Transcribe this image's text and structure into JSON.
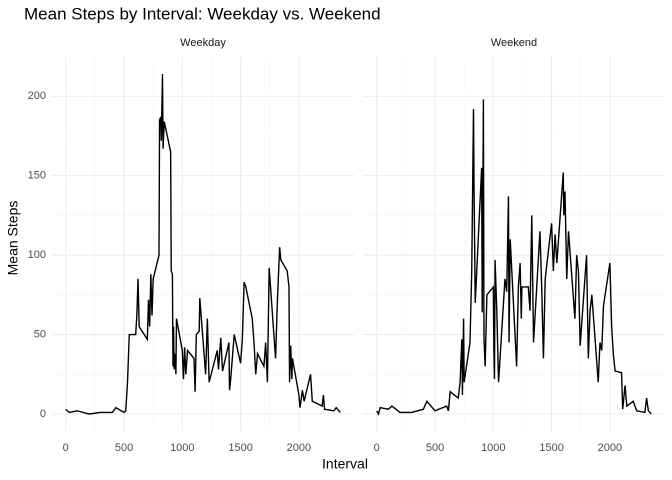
{
  "chart_data": [
    {
      "type": "line",
      "title": "Mean Steps by Interval: Weekday vs. Weekend",
      "x_label": "Interval",
      "y_label": "Mean Steps",
      "facet": "Weekday",
      "color": "#000000",
      "grid": true,
      "xlim": [
        -117.75,
        2472.75
      ],
      "xticks": [
        0,
        500,
        1000,
        1500,
        2000
      ],
      "ylim": [
        -10.7,
        224.7
      ],
      "yticks": [
        0,
        50,
        100,
        150,
        200
      ],
      "x": [
        0,
        30,
        100,
        200,
        300,
        400,
        430,
        500,
        515,
        530,
        545,
        600,
        610,
        620,
        630,
        700,
        710,
        720,
        730,
        740,
        750,
        800,
        805,
        815,
        820,
        830,
        835,
        845,
        900,
        905,
        915,
        920,
        925,
        930,
        940,
        945,
        950,
        1000,
        1010,
        1020,
        1030,
        1045,
        1100,
        1110,
        1120,
        1145,
        1150,
        1200,
        1215,
        1230,
        1300,
        1310,
        1330,
        1345,
        1400,
        1405,
        1415,
        1445,
        1500,
        1515,
        1530,
        1545,
        1600,
        1615,
        1630,
        1645,
        1700,
        1715,
        1730,
        1745,
        1800,
        1815,
        1835,
        1845,
        1900,
        1915,
        1920,
        1930,
        1940,
        1945,
        2000,
        2010,
        2030,
        2045,
        2100,
        2115,
        2200,
        2210,
        2220,
        2300,
        2320,
        2355
      ],
      "values": [
        3,
        1,
        2,
        0,
        1,
        1,
        4,
        1,
        2,
        20,
        50,
        50,
        62,
        85,
        55,
        47,
        72,
        55,
        88,
        62,
        85,
        100,
        185,
        187,
        172,
        214,
        167,
        184,
        165,
        90,
        88,
        30,
        55,
        28,
        38,
        25,
        60,
        40,
        22,
        42,
        25,
        40,
        35,
        14,
        50,
        52,
        73,
        25,
        60,
        20,
        40,
        28,
        48,
        27,
        45,
        15,
        22,
        50,
        32,
        47,
        83,
        80,
        60,
        45,
        25,
        38,
        30,
        45,
        20,
        92,
        35,
        70,
        105,
        97,
        90,
        80,
        20,
        43,
        22,
        35,
        12,
        4,
        15,
        8,
        25,
        8,
        5,
        12,
        3,
        2,
        4,
        1
      ]
    },
    {
      "type": "line",
      "facet": "Weekend",
      "color": "#000000",
      "grid": true,
      "xlim": [
        -117.75,
        2472.75
      ],
      "xticks": [
        0,
        500,
        1000,
        1500,
        2000
      ],
      "ylim": [
        -10.7,
        224.7
      ],
      "yticks": [
        0,
        50,
        100,
        150,
        200
      ],
      "x": [
        0,
        15,
        30,
        100,
        130,
        200,
        300,
        400,
        430,
        500,
        600,
        615,
        630,
        700,
        715,
        730,
        735,
        745,
        750,
        800,
        815,
        830,
        835,
        845,
        900,
        905,
        915,
        920,
        930,
        945,
        1000,
        1005,
        1010,
        1015,
        1030,
        1045,
        1100,
        1115,
        1130,
        1135,
        1145,
        1200,
        1215,
        1230,
        1240,
        1245,
        1300,
        1315,
        1330,
        1345,
        1400,
        1415,
        1430,
        1445,
        1500,
        1515,
        1530,
        1545,
        1600,
        1605,
        1615,
        1630,
        1645,
        1700,
        1715,
        1730,
        1745,
        1800,
        1815,
        1830,
        1845,
        1900,
        1915,
        1930,
        1945,
        2000,
        2015,
        2030,
        2045,
        2100,
        2110,
        2130,
        2145,
        2200,
        2230,
        2300,
        2315,
        2330,
        2355
      ],
      "values": [
        2,
        0,
        4,
        3,
        5,
        1,
        1,
        3,
        8,
        2,
        5,
        2,
        14,
        10,
        20,
        47,
        12,
        60,
        20,
        45,
        90,
        192,
        140,
        70,
        155,
        64,
        198,
        48,
        30,
        75,
        80,
        40,
        22,
        97,
        65,
        20,
        85,
        77,
        137,
        45,
        110,
        30,
        80,
        95,
        60,
        80,
        80,
        65,
        125,
        45,
        115,
        80,
        35,
        85,
        120,
        90,
        113,
        95,
        152,
        125,
        140,
        85,
        115,
        60,
        100,
        90,
        43,
        100,
        35,
        65,
        75,
        20,
        45,
        40,
        68,
        95,
        55,
        37,
        27,
        26,
        3,
        18,
        5,
        8,
        2,
        1,
        10,
        2,
        0
      ]
    }
  ]
}
